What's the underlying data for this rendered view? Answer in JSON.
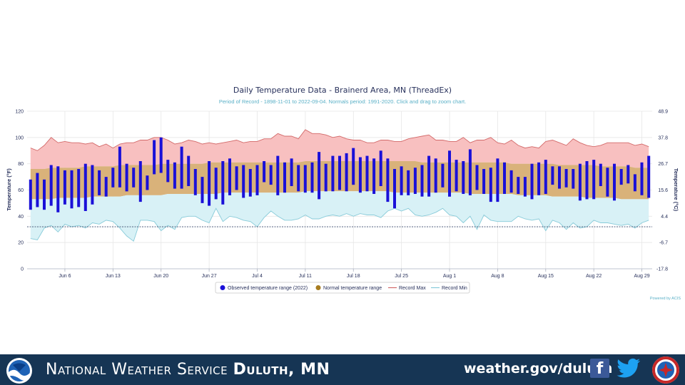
{
  "chart_data": {
    "type": "bar",
    "title": "Daily Temperature Data - Brainerd Area, MN (ThreadEx)",
    "subtitle": "Period of Record - 1898-11-01 to 2022-09-04. Normals period: 1991-2020. Click and drag to zoom chart.",
    "ylabel_left": "Temperature (°F)",
    "ylabel_right": "Temperature (°C)",
    "ylim": [
      0,
      120
    ],
    "yticks_left": [
      "0",
      "20",
      "40",
      "60",
      "80",
      "100",
      "120"
    ],
    "yticks_right": [
      "-17.8",
      "-6.7",
      "4.4",
      "15.6",
      "26.7",
      "37.8",
      "48.9"
    ],
    "xticks": [
      {
        "label": "Jun 6",
        "day": 5
      },
      {
        "label": "Jun 13",
        "day": 12
      },
      {
        "label": "Jun 20",
        "day": 19
      },
      {
        "label": "Jun 27",
        "day": 26
      },
      {
        "label": "Jul 4",
        "day": 33
      },
      {
        "label": "Jul 11",
        "day": 40
      },
      {
        "label": "Jul 18",
        "day": 47
      },
      {
        "label": "Jul 25",
        "day": 54
      },
      {
        "label": "Aug 1",
        "day": 61
      },
      {
        "label": "Aug 8",
        "day": 68
      },
      {
        "label": "Aug 15",
        "day": 75
      },
      {
        "label": "Aug 22",
        "day": 82
      },
      {
        "label": "Aug 29",
        "day": 89
      }
    ],
    "start_date": "Jun 1",
    "observed_high": [
      68,
      73,
      68,
      79,
      78,
      75,
      75,
      76,
      80,
      79,
      75,
      70,
      77,
      93,
      80,
      77,
      82,
      71,
      98,
      100,
      83,
      81,
      93,
      86,
      76,
      70,
      82,
      77,
      82,
      84,
      78,
      79,
      76,
      79,
      82,
      79,
      86,
      81,
      84,
      79,
      79,
      81,
      89,
      80,
      86,
      86,
      88,
      92,
      85,
      86,
      84,
      90,
      84,
      76,
      78,
      75,
      77,
      79,
      86,
      84,
      80,
      90,
      83,
      82,
      91,
      79,
      76,
      77,
      84,
      81,
      75,
      70,
      70,
      80,
      81,
      83,
      78,
      78,
      76,
      76,
      80,
      82,
      83,
      80,
      77,
      80,
      76,
      79,
      72,
      81,
      86
    ],
    "observed_low": [
      45,
      47,
      45,
      48,
      43,
      49,
      46,
      47,
      44,
      49,
      56,
      55,
      62,
      62,
      59,
      62,
      51,
      60,
      72,
      73,
      66,
      61,
      61,
      63,
      56,
      50,
      48,
      53,
      49,
      56,
      60,
      54,
      55,
      56,
      66,
      64,
      56,
      58,
      63,
      59,
      58,
      58,
      53,
      59,
      59,
      60,
      59,
      64,
      58,
      59,
      57,
      63,
      51,
      46,
      56,
      56,
      57,
      55,
      55,
      58,
      62,
      55,
      59,
      57,
      56,
      60,
      57,
      51,
      51,
      57,
      58,
      57,
      55,
      53,
      56,
      57,
      64,
      61,
      62,
      61,
      52,
      53,
      53,
      63,
      55,
      52,
      64,
      65,
      59,
      56,
      54
    ],
    "normal_high": [
      76,
      76,
      76,
      77,
      77,
      77,
      77,
      77,
      78,
      78,
      78,
      78,
      78,
      79,
      79,
      79,
      79,
      79,
      79,
      80,
      80,
      80,
      80,
      80,
      80,
      80,
      81,
      81,
      81,
      81,
      81,
      81,
      81,
      81,
      81,
      81,
      81,
      81,
      81,
      81,
      82,
      82,
      82,
      82,
      82,
      82,
      82,
      82,
      82,
      82,
      82,
      82,
      82,
      82,
      82,
      82,
      82,
      81,
      81,
      81,
      81,
      81,
      81,
      81,
      81,
      81,
      81,
      81,
      81,
      81,
      80,
      80,
      80,
      80,
      80,
      80,
      80,
      79,
      79,
      79,
      79,
      79,
      79,
      78,
      78,
      78,
      78,
      78,
      77,
      77,
      77
    ],
    "normal_low": [
      53,
      53,
      53,
      53,
      54,
      54,
      54,
      54,
      54,
      55,
      55,
      55,
      55,
      55,
      56,
      56,
      56,
      56,
      56,
      56,
      57,
      57,
      57,
      57,
      57,
      57,
      57,
      57,
      58,
      58,
      58,
      58,
      58,
      58,
      58,
      58,
      58,
      58,
      58,
      58,
      59,
      59,
      59,
      59,
      59,
      59,
      59,
      59,
      59,
      59,
      59,
      59,
      59,
      58,
      58,
      58,
      58,
      58,
      58,
      58,
      58,
      58,
      58,
      58,
      57,
      57,
      57,
      57,
      57,
      57,
      57,
      56,
      56,
      56,
      56,
      56,
      55,
      55,
      55,
      55,
      55,
      54,
      54,
      54,
      54,
      54,
      53,
      53,
      53,
      53,
      53
    ],
    "record_max": [
      92,
      90,
      94,
      100,
      96,
      97,
      96,
      96,
      95,
      96,
      93,
      95,
      92,
      95,
      96,
      96,
      98,
      98,
      100,
      100,
      98,
      95,
      96,
      98,
      97,
      95,
      96,
      95,
      96,
      97,
      98,
      96,
      97,
      97,
      99,
      99,
      103,
      101,
      101,
      99,
      106,
      103,
      103,
      102,
      100,
      101,
      99,
      98,
      98,
      96,
      96,
      98,
      98,
      97,
      97,
      99,
      100,
      101,
      102,
      98,
      98,
      97,
      97,
      100,
      96,
      98,
      98,
      100,
      96,
      95,
      98,
      94,
      92,
      93,
      92,
      97,
      98,
      96,
      94,
      99,
      96,
      94,
      93,
      94,
      96,
      96,
      96,
      96,
      94,
      95,
      93
    ],
    "record_min": [
      23,
      22,
      31,
      33,
      28,
      34,
      32,
      33,
      31,
      35,
      34,
      37,
      36,
      31,
      25,
      21,
      37,
      37,
      36,
      29,
      33,
      30,
      39,
      40,
      40,
      37,
      35,
      46,
      36,
      40,
      39,
      37,
      36,
      32,
      39,
      44,
      40,
      37,
      37,
      38,
      41,
      38,
      38,
      40,
      41,
      40,
      42,
      40,
      42,
      41,
      41,
      39,
      44,
      46,
      44,
      46,
      41,
      40,
      41,
      43,
      46,
      41,
      40,
      35,
      40,
      30,
      41,
      37,
      36,
      36,
      36,
      40,
      38,
      37,
      38,
      29,
      37,
      35,
      30,
      35,
      31,
      32,
      37,
      35,
      35,
      34,
      33,
      34,
      31,
      35,
      37
    ],
    "record_min_dashed": 32,
    "legend": [
      "Observed temperature range (2022)",
      "Normal temperature range",
      "Record Max",
      "Record Min"
    ],
    "credit": "Powered by ACIS",
    "colors": {
      "observed": "#1a10d8",
      "normal_band": "#d9b27a",
      "normal_legend": "#a77c1f",
      "record_max_fill": "#f8c0c0",
      "record_max_line": "#d36a6a",
      "record_min_fill": "#d8f1f6",
      "record_min_line": "#88cbd9",
      "title": "#27305b",
      "subtitle": "#5ab0c7"
    }
  },
  "footer": {
    "agency_prefix": "National Weather Service",
    "agency_office": "Duluth, MN",
    "website": "weather.gov/duluth",
    "background": "#163554"
  }
}
